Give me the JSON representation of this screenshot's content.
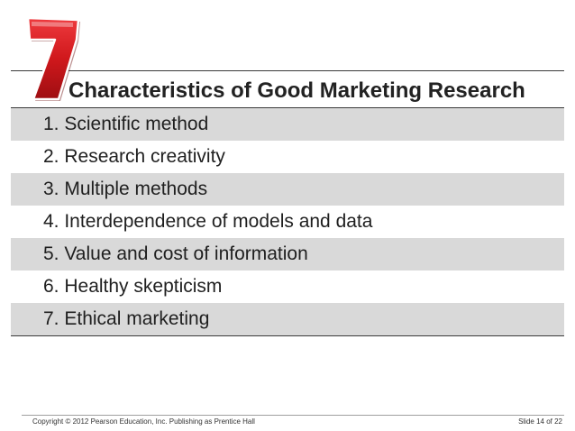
{
  "slide": {
    "badge_number": "7",
    "badge_color": "#d0181c",
    "title": "Characteristics of Good Marketing Research",
    "items": [
      "1. Scientific method",
      "2. Research creativity",
      "3. Multiple methods",
      "4. Interdependence of models and data",
      "5. Value and cost of information",
      "6. Healthy skepticism",
      "7. Ethical marketing"
    ],
    "row_colors": [
      "#d9d9d9",
      "#ffffff"
    ]
  },
  "footer": {
    "copyright": "Copyright © 2012 Pearson Education, Inc. Publishing as Prentice Hall",
    "slide_counter": "Slide 14 of 22"
  }
}
